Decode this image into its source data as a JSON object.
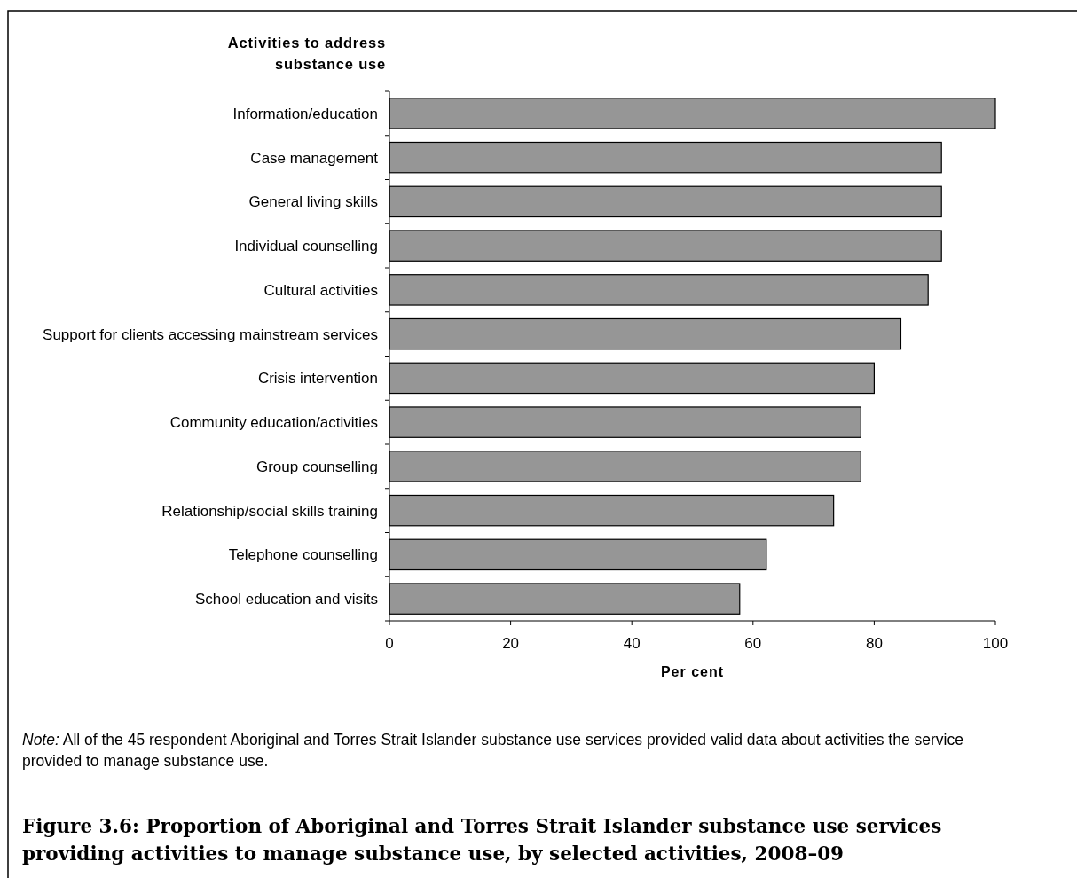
{
  "chart_data": {
    "type": "bar",
    "orientation": "horizontal",
    "title": "Figure 3.6: Proportion of Aboriginal and Torres Strait Islander substance use services providing activities to manage substance use, by selected activities, 2008–09",
    "ylabel": "Activities to address substance use",
    "xlabel": "Per cent",
    "categories": [
      "Information/education",
      "Case management",
      "General living skills",
      "Individual counselling",
      "Cultural activities",
      "Support for clients accessing mainstream services",
      "Crisis intervention",
      "Community education/activities",
      "Group counselling",
      "Relationship/social skills training",
      "Telephone counselling",
      "School education and visits"
    ],
    "values": [
      100,
      91.1,
      91.1,
      91.1,
      88.9,
      84.4,
      80,
      77.8,
      77.8,
      73.3,
      62.2,
      57.8
    ],
    "color": "#969696",
    "xlim": [
      0,
      100
    ],
    "xticks": [
      0,
      20,
      40,
      60,
      80,
      100
    ],
    "annotations": [
      "Note: All of the 45 respondent Aboriginal and Torres Strait Islander substance use services provided valid data about activities the service provided to manage substance use."
    ]
  }
}
